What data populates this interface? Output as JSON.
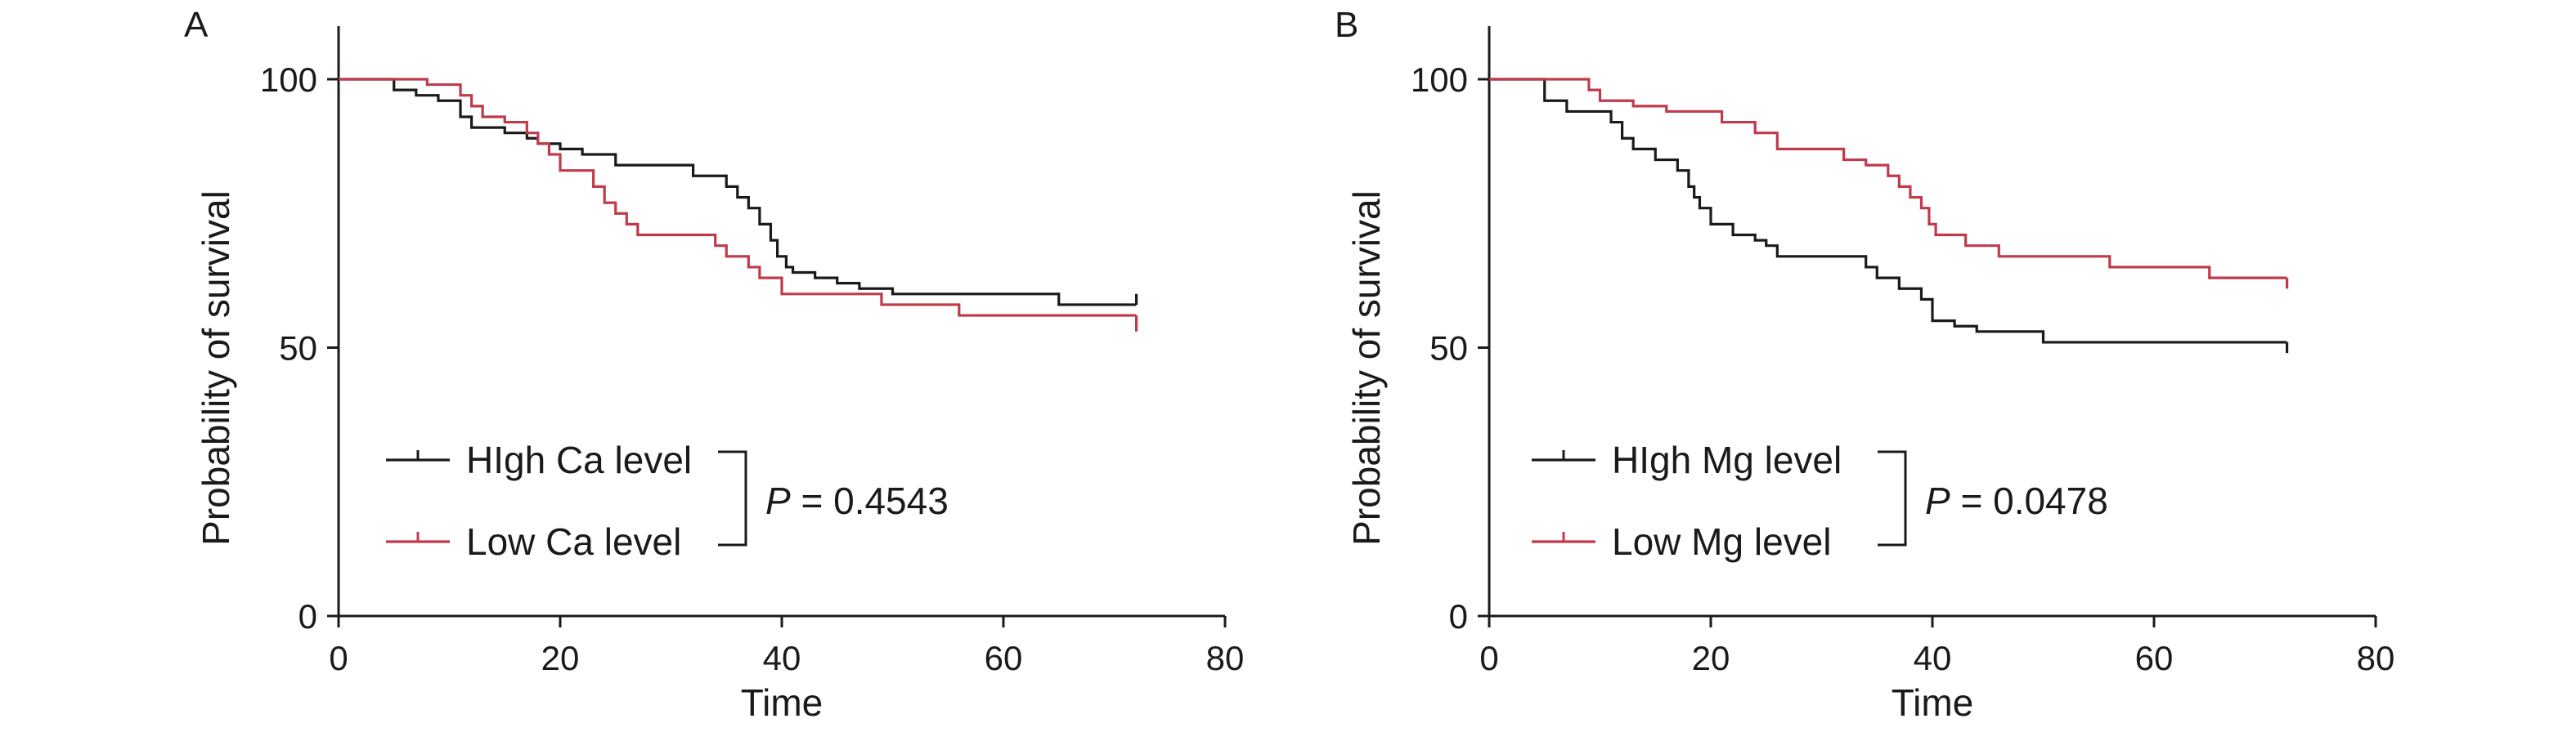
{
  "chart_data": [
    {
      "type": "line",
      "panel_label": "A",
      "xlabel": "Time",
      "ylabel": "Probability of survival",
      "xlim": [
        0,
        80
      ],
      "ylim": [
        0,
        100
      ],
      "xticks": [
        "0",
        "20",
        "40",
        "60",
        "80"
      ],
      "yticks": [
        "0",
        "50",
        "100"
      ],
      "legend_placement": "bottom-left",
      "p_value_prefix": "P",
      "p_value_text": " = 0.4543",
      "series": [
        {
          "name": "HIgh Ca level",
          "color": "#1a1a1a",
          "x": [
            0,
            5,
            7,
            9,
            11,
            12,
            15,
            17,
            18,
            20,
            22,
            24,
            25,
            32,
            35,
            36,
            37,
            38,
            39,
            39.6,
            40.4,
            41,
            43,
            45,
            47,
            50,
            65,
            72
          ],
          "y": [
            100,
            98,
            97,
            96,
            93,
            91,
            90,
            89,
            88,
            87,
            86,
            86,
            84,
            82,
            80,
            78,
            76,
            73,
            70,
            67,
            65,
            64,
            63,
            62,
            61,
            60,
            58,
            58
          ],
          "end_censor": 60
        },
        {
          "name": "Low Ca level",
          "color": "#c03a4c",
          "x": [
            0,
            8,
            11,
            12,
            13,
            15,
            17,
            18,
            19,
            20,
            23,
            24,
            25,
            26,
            27,
            34,
            35,
            37,
            38,
            40,
            49,
            56,
            72
          ],
          "y": [
            100,
            99,
            97,
            95,
            93,
            92,
            90,
            88,
            86,
            83,
            80,
            77,
            75,
            73,
            71,
            69,
            67,
            65,
            63,
            60,
            58,
            56,
            56
          ],
          "end_censor": 53
        }
      ]
    },
    {
      "type": "line",
      "panel_label": "B",
      "xlabel": "Time",
      "ylabel": "Probability of survival",
      "xlim": [
        0,
        80
      ],
      "ylim": [
        0,
        100
      ],
      "xticks": [
        "0",
        "20",
        "40",
        "60",
        "80"
      ],
      "yticks": [
        "0",
        "50",
        "100"
      ],
      "legend_placement": "bottom-left",
      "p_value_prefix": "P",
      "p_value_text": " = 0.0478",
      "series": [
        {
          "name": "HIgh Mg level",
          "color": "#1a1a1a",
          "x": [
            0,
            5,
            7,
            11,
            12,
            13,
            15,
            17,
            18,
            18.5,
            19,
            20,
            22,
            24,
            25,
            26,
            34,
            35,
            37,
            39,
            40,
            42,
            44,
            50,
            72
          ],
          "y": [
            100,
            96,
            94,
            92,
            89,
            87,
            85,
            83,
            80,
            78,
            76,
            73,
            71,
            70,
            69,
            67,
            65,
            63,
            61,
            59,
            55,
            54,
            53,
            51,
            51
          ],
          "end_censor": 49
        },
        {
          "name": "Low Mg level",
          "color": "#c03a4c",
          "x": [
            0,
            9,
            10,
            13,
            16,
            21,
            24,
            26,
            32,
            34,
            36,
            37,
            38,
            39,
            39.7,
            40.3,
            41,
            43,
            46,
            56,
            65,
            72
          ],
          "y": [
            100,
            98,
            96,
            95,
            94,
            92,
            90,
            87,
            85,
            84,
            82,
            80,
            78,
            76,
            73,
            71,
            71,
            69,
            67,
            65,
            63,
            63
          ],
          "end_censor": 61
        }
      ]
    }
  ]
}
